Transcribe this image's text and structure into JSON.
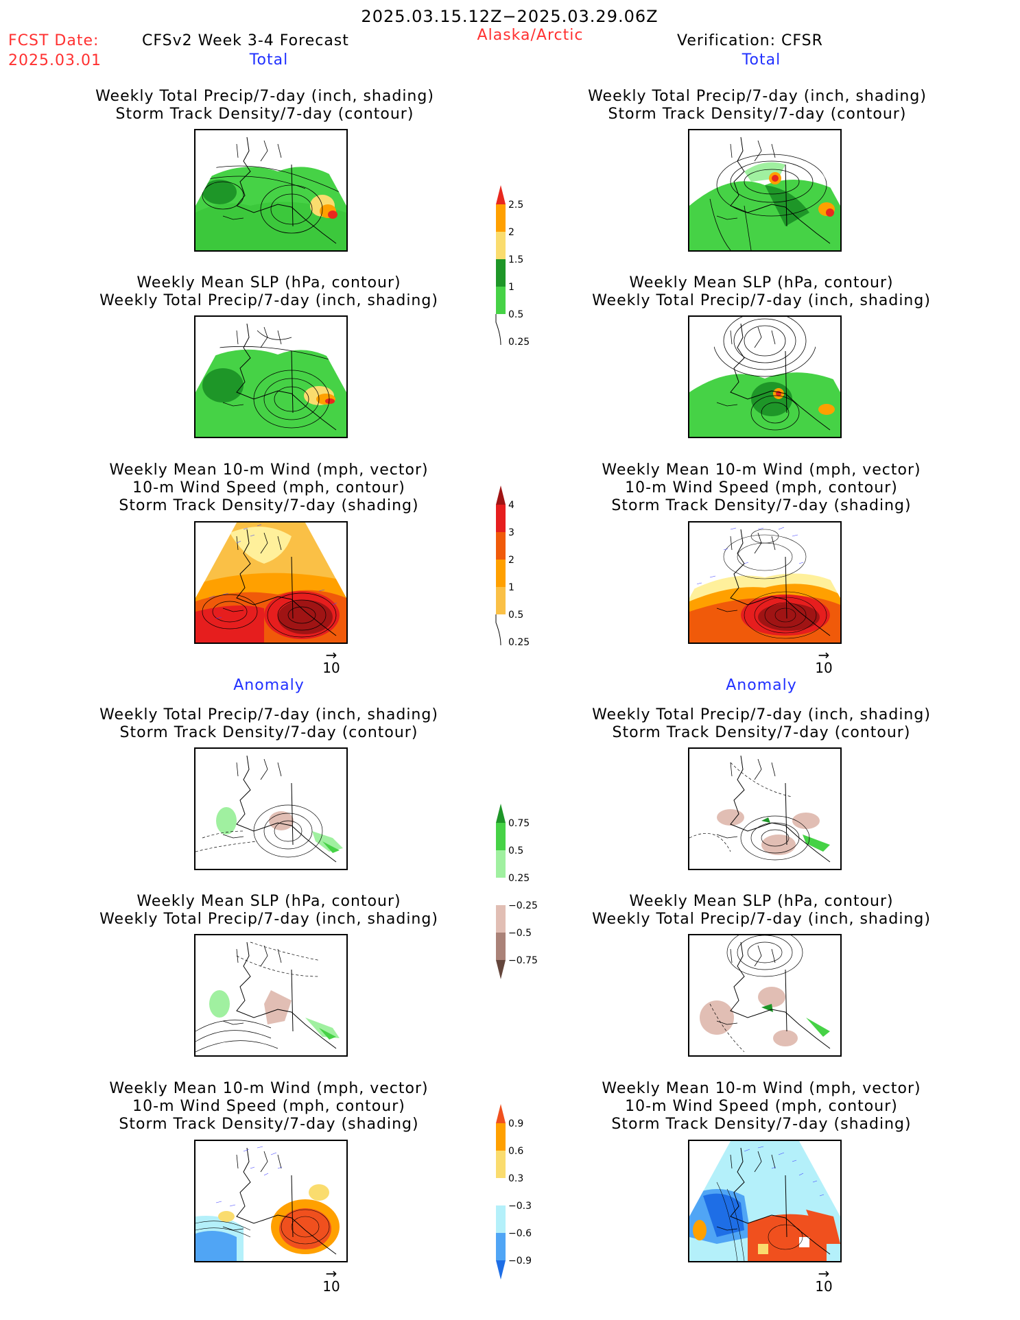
{
  "header": {
    "date_range": "2025.03.15.12Z−2025.03.29.06Z",
    "fcst_label": "FCST Date:",
    "fcst_date": "2025.03.01",
    "model_label": "CFSv2 Week 3-4 Forecast",
    "region": "Alaska/Arctic",
    "verification": "Verification: CFSR"
  },
  "sections": {
    "total": "Total",
    "anomaly": "Anomaly"
  },
  "titles": {
    "precip_storm": [
      "Weekly Total Precip/7-day (inch, shading)",
      "Storm Track Density/7-day (contour)"
    ],
    "slp_precip": [
      "Weekly Mean SLP (hPa, contour)",
      "Weekly Total Precip/7-day (inch, shading)"
    ],
    "wind_storm": [
      "Weekly Mean 10-m Wind (mph, vector)",
      "10-m Wind Speed (mph, contour)",
      "Storm Track Density/7-day (shading)"
    ]
  },
  "vector_ref": {
    "arrow": "→",
    "value": "10"
  },
  "colorbars": {
    "total_precip": {
      "labels": [
        "2.5",
        "2",
        "1.5",
        "1",
        "0.5",
        "0.25"
      ],
      "colors": [
        "#e8281e",
        "#ffa000",
        "#fadc6e",
        "#1e9628",
        "#46d246",
        "#a0f0a0"
      ]
    },
    "total_storm": {
      "labels": [
        "4",
        "3",
        "2",
        "1",
        "0.5",
        "0.25"
      ],
      "colors": [
        "#a01414",
        "#e61e1e",
        "#f05a0a",
        "#ffa000",
        "#fac046",
        "#fff09b"
      ]
    },
    "anom_precip": {
      "labels": [
        "0.75",
        "0.5",
        "0.25",
        "−0.25",
        "−0.5",
        "−0.75"
      ],
      "colors": [
        "#1e9628",
        "#46d246",
        "#a0f0a0",
        "#ffffff",
        "#e1beb4",
        "#aa8278",
        "#64463c"
      ]
    },
    "anom_storm": {
      "labels": [
        "0.9",
        "0.6",
        "0.3",
        "−0.3",
        "−0.6",
        "−0.9"
      ],
      "colors": [
        "#f0501e",
        "#ffa000",
        "#fadc6e",
        "#ffffff",
        "#b4f0fa",
        "#50a5f5",
        "#1e6ee6"
      ]
    }
  }
}
